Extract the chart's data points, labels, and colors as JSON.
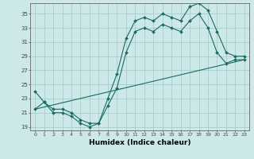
{
  "title": "",
  "xlabel": "Humidex (Indice chaleur)",
  "bg_color": "#cde8e8",
  "line_color": "#1a6b60",
  "grid_color": "#aacccc",
  "xlim": [
    -0.5,
    23.5
  ],
  "ylim": [
    18.5,
    36.5
  ],
  "xticks": [
    0,
    1,
    2,
    3,
    4,
    5,
    6,
    7,
    8,
    9,
    10,
    11,
    12,
    13,
    14,
    15,
    16,
    17,
    18,
    19,
    20,
    21,
    22,
    23
  ],
  "yticks": [
    19,
    21,
    23,
    25,
    27,
    29,
    31,
    33,
    35
  ],
  "line1_x": [
    0,
    1,
    2,
    3,
    4,
    5,
    6,
    7,
    8,
    9,
    10,
    11,
    12,
    13,
    14,
    15,
    16,
    17,
    18,
    19,
    20,
    21,
    22,
    23
  ],
  "line1_y": [
    24.0,
    22.5,
    21.5,
    21.5,
    21.0,
    20.0,
    19.5,
    19.5,
    23.0,
    26.5,
    31.5,
    34.0,
    34.5,
    34.0,
    35.0,
    34.5,
    34.0,
    36.0,
    36.5,
    35.5,
    32.5,
    29.5,
    29.0,
    29.0
  ],
  "line2_x": [
    0,
    1,
    2,
    3,
    4,
    5,
    6,
    7,
    8,
    9,
    10,
    11,
    12,
    13,
    14,
    15,
    16,
    17,
    18,
    19,
    20,
    21,
    22,
    23
  ],
  "line2_y": [
    21.5,
    22.5,
    21.0,
    21.0,
    20.5,
    19.5,
    19.0,
    19.5,
    22.0,
    24.5,
    29.5,
    32.5,
    33.0,
    32.5,
    33.5,
    33.0,
    32.5,
    34.0,
    35.0,
    33.0,
    29.5,
    28.0,
    28.5,
    28.5
  ],
  "line3_x": [
    0,
    23
  ],
  "line3_y": [
    21.5,
    28.5
  ]
}
